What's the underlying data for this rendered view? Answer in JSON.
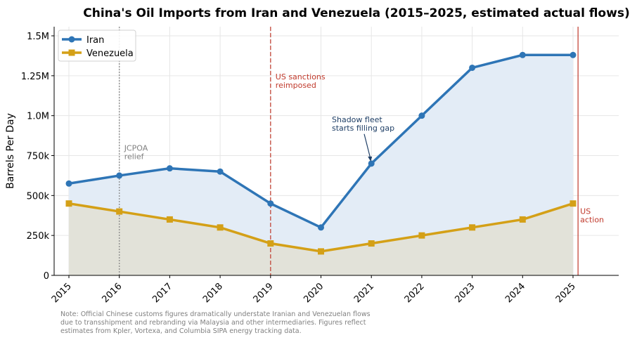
{
  "chart_data": {
    "type": "line",
    "title": "China's Oil Imports from Iran and Venezuela  (2015–2025, estimated actual flows)",
    "xlabel": "",
    "ylabel": "Barrels Per Day",
    "x": [
      2015,
      2016,
      2017,
      2018,
      2019,
      2020,
      2021,
      2022,
      2023,
      2024,
      2025
    ],
    "xticks": [
      "2015",
      "2016",
      "2017",
      "2018",
      "2019",
      "2020",
      "2021",
      "2022",
      "2023",
      "2024",
      "2025"
    ],
    "ylim": [
      0,
      1550000
    ],
    "yticks": [
      {
        "v": 0,
        "l": "0"
      },
      {
        "v": 250000,
        "l": "250k"
      },
      {
        "v": 500000,
        "l": "500k"
      },
      {
        "v": 750000,
        "l": "750k"
      },
      {
        "v": 1000000,
        "l": "1.0M"
      },
      {
        "v": 1250000,
        "l": "1.25M"
      },
      {
        "v": 1500000,
        "l": "1.5M"
      }
    ],
    "grid": true,
    "legend_position": "top-left",
    "series": [
      {
        "name": "Iran",
        "color": "#2e75b6",
        "fill": "#e3ecf6",
        "marker": "circle",
        "values": [
          575000,
          625000,
          670000,
          650000,
          450000,
          300000,
          700000,
          1000000,
          1300000,
          1380000,
          1380000
        ]
      },
      {
        "name": "Venezuela",
        "color": "#d4a017",
        "fill": "#e1e1d6",
        "marker": "square",
        "values": [
          450000,
          400000,
          350000,
          300000,
          200000,
          150000,
          200000,
          250000,
          300000,
          350000,
          450000
        ]
      }
    ],
    "annotations": [
      {
        "x": 2016,
        "lines": [
          "JCPOA",
          "relief"
        ],
        "color": "#808080",
        "style": "dotted"
      },
      {
        "x": 2019,
        "lines": [
          "US sanctions",
          "reimposed"
        ],
        "color": "#c0392b",
        "style": "dashed"
      },
      {
        "x": 2025.1,
        "lines": [
          "US",
          "action"
        ],
        "color": "#c0392b",
        "style": "solid"
      }
    ],
    "arrow_note": {
      "lines": [
        "Shadow fleet",
        "starts filling gap"
      ],
      "color": "#1f3f66",
      "target_x": 2021,
      "target_y": 700000
    },
    "note": [
      "Note: Official Chinese customs figures dramatically understate Iranian and Venezuelan flows",
      "due to transshipment and rebranding via Malaysia and other intermediaries. Figures reflect",
      "estimates from Kpler, Vortexa, and Columbia SIPA energy tracking data."
    ]
  }
}
